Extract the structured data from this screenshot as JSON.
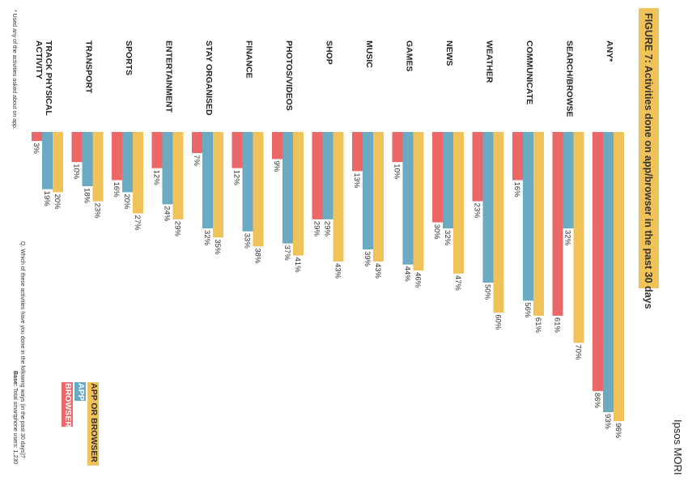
{
  "title": "FIGURE 7: Activities done on app/browser in the past 30 days",
  "brand": "Ipsos MORI",
  "question": "Q. Which of these activities have you done in the following ways (in the past 30 days)?",
  "base_label": "Base:",
  "base_text": "Total smartphone users: 1,230",
  "footnote": "* Used any of the activities asked about on app.",
  "colors": {
    "browser": "#ec6868",
    "app": "#6aaac3",
    "app_or_browser": "#f0c35a"
  },
  "legend": [
    "APP OR BROWSER",
    "APP",
    "BROWSER"
  ],
  "chart_data": {
    "type": "bar",
    "categories": [
      "ANY*",
      "SEARCH/BROWSE",
      "COMMUNICATE",
      "WEATHER",
      "NEWS",
      "GAMES",
      "MUSIC",
      "SHOP",
      "PHOTOS/VIDEOS",
      "FINANCE",
      "STAY ORGANISED",
      "ENTERTAINMENT",
      "SPORTS",
      "TRANSPORT",
      "TRACK PHYSICAL ACTIVITY"
    ],
    "series": [
      {
        "name": "BROWSER",
        "values": [
          86,
          61,
          16,
          23,
          30,
          10,
          13,
          29,
          9,
          12,
          7,
          12,
          16,
          10,
          3
        ]
      },
      {
        "name": "APP",
        "values": [
          93,
          32,
          56,
          50,
          32,
          44,
          39,
          29,
          37,
          33,
          32,
          24,
          20,
          18,
          19
        ]
      },
      {
        "name": "APP OR BROWSER",
        "values": [
          96,
          70,
          61,
          60,
          47,
          46,
          43,
          43,
          41,
          38,
          35,
          29,
          27,
          23,
          20
        ]
      }
    ],
    "ylim": [
      0,
      100
    ],
    "value_suffix": "%",
    "legend_position": "bottom-left"
  }
}
